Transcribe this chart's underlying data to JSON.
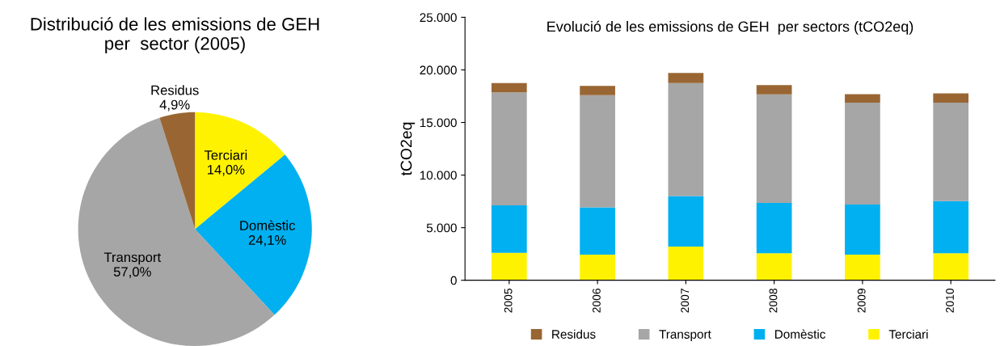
{
  "chart_data": [
    {
      "type": "pie",
      "title": "Distribució de les emissions de GEH\nper  sector (2005)",
      "categories": [
        "Terciari",
        "Domèstic",
        "Transport",
        "Residus"
      ],
      "values": [
        14.0,
        24.1,
        57.0,
        4.9
      ],
      "value_labels": [
        "14,0%",
        "24,1%",
        "57,0%",
        "4,9%"
      ],
      "colors": [
        "#fff200",
        "#00b0f0",
        "#a6a6a6",
        "#996633"
      ],
      "legend": false
    },
    {
      "type": "bar",
      "stacked": true,
      "title": "Evolució de les emissions de GEH  per sectors (tCO2eq)",
      "ylabel": "tCO2eq",
      "categories": [
        "2005",
        "2006",
        "2007",
        "2008",
        "2009",
        "2010"
      ],
      "series": [
        {
          "name": "Terciari",
          "color": "#fff200",
          "values": [
            2600,
            2430,
            3210,
            2570,
            2430,
            2570
          ]
        },
        {
          "name": "Domèstic",
          "color": "#00b0f0",
          "values": [
            4530,
            4500,
            4790,
            4790,
            4770,
            4960
          ]
        },
        {
          "name": "Transport",
          "color": "#a6a6a6",
          "values": [
            10740,
            10670,
            10750,
            10310,
            9690,
            9360
          ]
        },
        {
          "name": "Residus",
          "color": "#996633",
          "values": [
            880,
            880,
            950,
            880,
            810,
            880
          ]
        }
      ],
      "ylim": [
        0,
        25000
      ],
      "yticks": [
        {
          "value": 0,
          "label": "0"
        },
        {
          "value": 5000,
          "label": "5.000"
        },
        {
          "value": 10000,
          "label": "10.000"
        },
        {
          "value": 15000,
          "label": "15.000"
        },
        {
          "value": 20000,
          "label": "20.000"
        },
        {
          "value": 25000,
          "label": "25.000"
        }
      ],
      "grid": false,
      "legend": "bottom"
    }
  ]
}
